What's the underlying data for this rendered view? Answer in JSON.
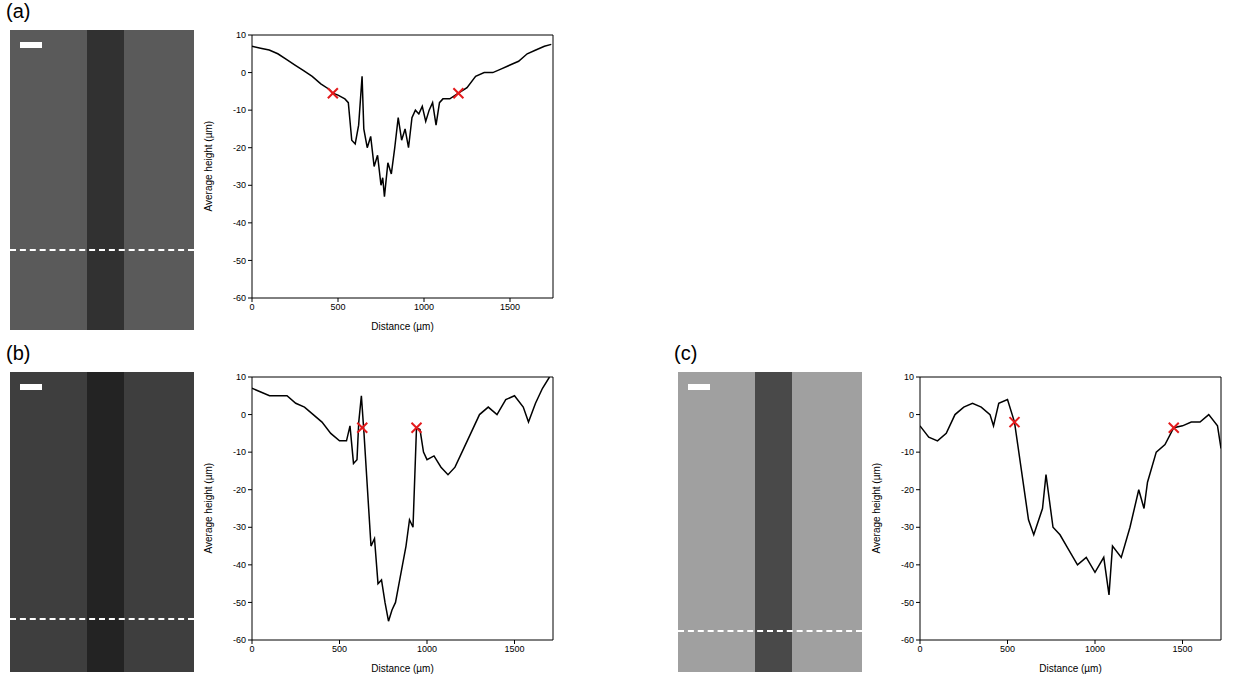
{
  "chart_data": [
    {
      "type": "line",
      "panel": "(a)",
      "x_label": "Distance (µm)",
      "y_label": "Average height (µm)",
      "xlim": [
        0,
        1750
      ],
      "xticks": [
        0,
        500,
        1000,
        1500
      ],
      "ylim": [
        -60,
        10
      ],
      "yticks": [
        -60,
        -50,
        -40,
        -30,
        -20,
        -10,
        0,
        10
      ],
      "color": "#000000",
      "grid": false,
      "x": [
        0,
        50,
        100,
        150,
        200,
        250,
        300,
        350,
        400,
        450,
        470,
        500,
        540,
        560,
        580,
        600,
        620,
        640,
        650,
        670,
        690,
        710,
        730,
        750,
        760,
        770,
        790,
        810,
        830,
        850,
        870,
        890,
        910,
        930,
        950,
        970,
        990,
        1010,
        1030,
        1050,
        1070,
        1090,
        1110,
        1150,
        1200,
        1250,
        1300,
        1350,
        1400,
        1450,
        1500,
        1550,
        1600,
        1650,
        1700,
        1740
      ],
      "values": [
        7,
        6.5,
        6,
        5,
        3.5,
        2,
        0.5,
        -1,
        -3,
        -4.5,
        -5.5,
        -6,
        -7,
        -8,
        -18,
        -19,
        -14,
        -1,
        -15,
        -20,
        -17,
        -25,
        -22,
        -30,
        -28,
        -33,
        -24,
        -27,
        -20,
        -12,
        -18,
        -15,
        -20,
        -12,
        -10,
        -11,
        -9,
        -13,
        -10,
        -8,
        -14,
        -8,
        -7,
        -7,
        -5.5,
        -4,
        -1,
        0,
        0,
        1,
        2,
        3,
        5,
        6,
        7,
        7.5
      ],
      "markers": {
        "x": [
          470,
          1200
        ],
        "values": [
          -5.5,
          -5.5
        ],
        "color": "#e41a1c",
        "marker": "x"
      }
    },
    {
      "type": "line",
      "panel": "(b)",
      "x_label": "Distance (µm)",
      "y_label": "Average height (µm)",
      "xlim": [
        0,
        1720
      ],
      "xticks": [
        0,
        500,
        1000,
        1500
      ],
      "ylim": [
        -60,
        10
      ],
      "yticks": [
        -60,
        -50,
        -40,
        -30,
        -20,
        -10,
        0,
        10
      ],
      "color": "#000000",
      "grid": false,
      "x": [
        0,
        50,
        100,
        200,
        250,
        300,
        350,
        400,
        450,
        500,
        540,
        560,
        580,
        600,
        610,
        625,
        640,
        660,
        680,
        700,
        720,
        740,
        760,
        780,
        800,
        820,
        840,
        860,
        880,
        900,
        920,
        940,
        960,
        980,
        1000,
        1040,
        1080,
        1120,
        1160,
        1200,
        1250,
        1300,
        1350,
        1400,
        1450,
        1500,
        1550,
        1580,
        1620,
        1660,
        1700
      ],
      "values": [
        7,
        6,
        5,
        5,
        3,
        2,
        0,
        -2,
        -5,
        -7,
        -7,
        -3,
        -13,
        -12,
        -2,
        5,
        -5,
        -20,
        -35,
        -33,
        -45,
        -44,
        -50,
        -55,
        -52,
        -50,
        -45,
        -40,
        -35,
        -28,
        -30,
        -3.5,
        -4,
        -10,
        -12,
        -11,
        -14,
        -16,
        -14,
        -10,
        -5,
        0,
        2,
        0,
        4,
        5,
        2,
        -2,
        3,
        7,
        10
      ],
      "markers": {
        "x": [
          630,
          940
        ],
        "values": [
          -3.5,
          -3.5
        ],
        "color": "#e41a1c",
        "marker": "x"
      }
    },
    {
      "type": "line",
      "panel": "(c)",
      "x_label": "Distance (µm)",
      "y_label": "Average height (µm)",
      "xlim": [
        0,
        1720
      ],
      "xticks": [
        0,
        500,
        1000,
        1500
      ],
      "ylim": [
        -60,
        10
      ],
      "yticks": [
        -60,
        -50,
        -40,
        -30,
        -20,
        -10,
        0,
        10
      ],
      "color": "#000000",
      "grid": false,
      "x": [
        0,
        50,
        100,
        150,
        200,
        250,
        300,
        350,
        400,
        420,
        450,
        500,
        540,
        580,
        620,
        650,
        700,
        720,
        760,
        800,
        850,
        900,
        950,
        1000,
        1050,
        1080,
        1100,
        1150,
        1200,
        1250,
        1280,
        1300,
        1350,
        1400,
        1450,
        1500,
        1550,
        1600,
        1650,
        1700,
        1720
      ],
      "values": [
        -3,
        -6,
        -7,
        -5,
        0,
        2,
        3,
        2,
        0,
        -3,
        3,
        4,
        -2,
        -15,
        -28,
        -32,
        -25,
        -16,
        -30,
        -32,
        -36,
        -40,
        -38,
        -42,
        -38,
        -48,
        -35,
        -38,
        -30,
        -20,
        -25,
        -18,
        -10,
        -8,
        -3.5,
        -3,
        -2,
        -2,
        0,
        -3,
        -9
      ],
      "markers": {
        "x": [
          540,
          1450
        ],
        "values": [
          -2,
          -3.5
        ],
        "color": "#e41a1c",
        "marker": "x"
      }
    }
  ]
}
